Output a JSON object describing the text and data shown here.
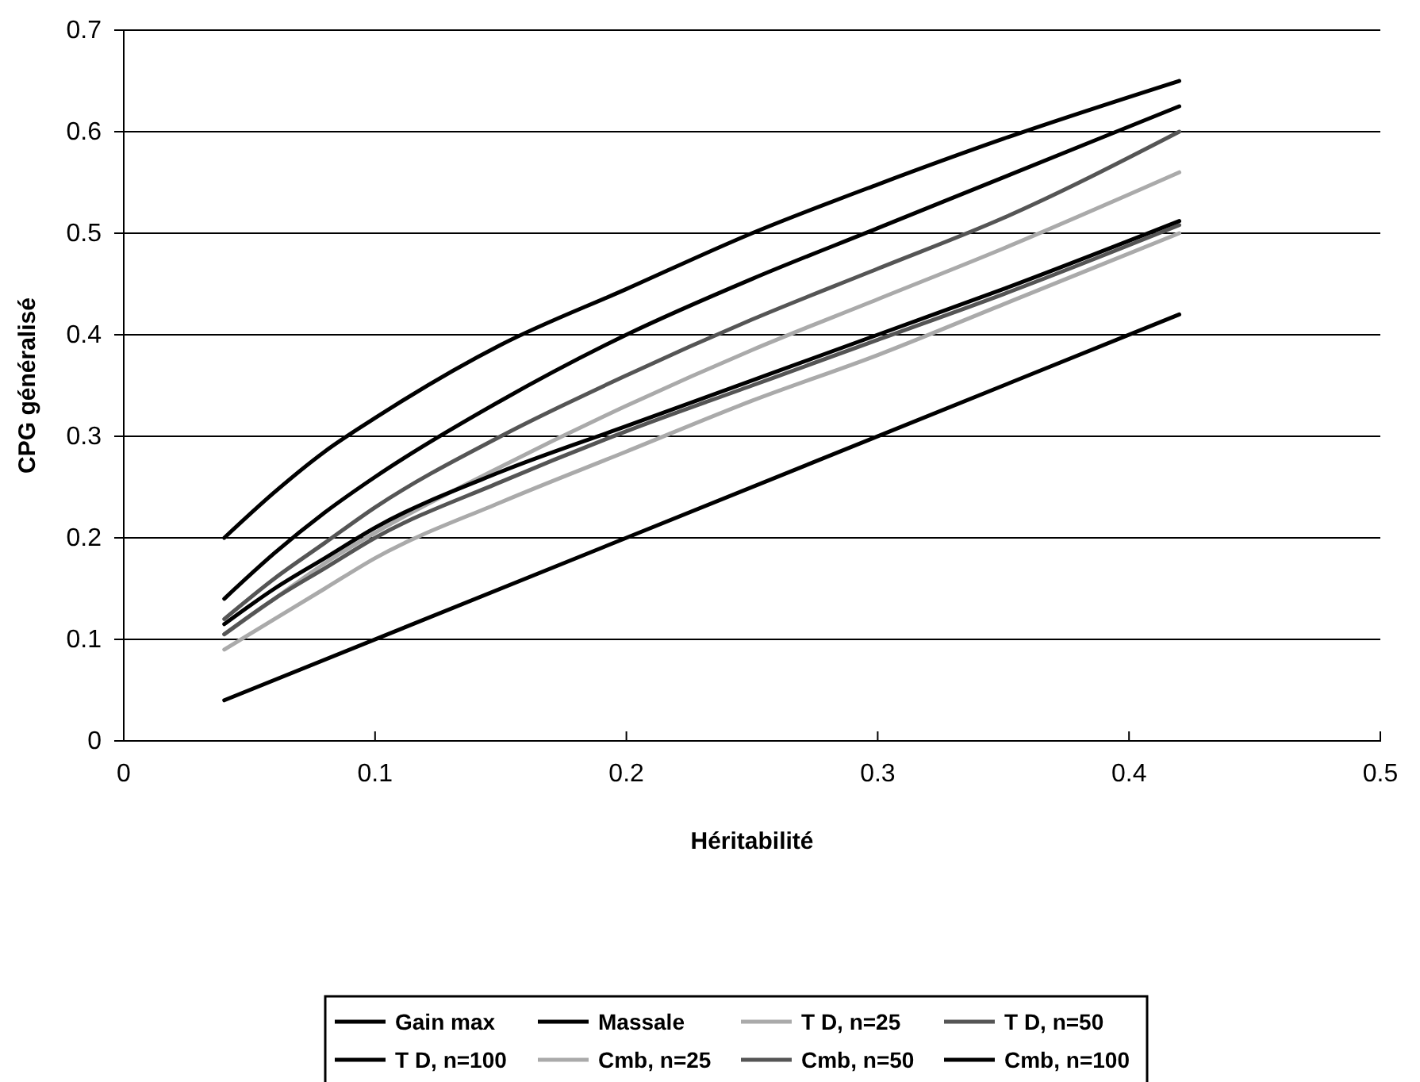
{
  "chart_data": {
    "type": "line",
    "xlabel": "Héritabilité",
    "ylabel": "CPG généralisé",
    "x": [
      0.04,
      0.06,
      0.08,
      0.1,
      0.15,
      0.2,
      0.25,
      0.3,
      0.35,
      0.42
    ],
    "xlim": [
      0,
      0.5
    ],
    "xticks": [
      0,
      0.1,
      0.2,
      0.3,
      0.4,
      0.5
    ],
    "ylim": [
      0,
      0.7
    ],
    "yticks": [
      0,
      0.1,
      0.2,
      0.3,
      0.4,
      0.5,
      0.6,
      0.7
    ],
    "grid": "y",
    "legend": "bottom",
    "line_style": "solid",
    "marker": "none",
    "series": [
      {
        "name": "Gain max",
        "color": "#000000",
        "values": [
          0.2,
          0.245,
          0.285,
          0.318,
          0.39,
          0.445,
          0.5,
          0.548,
          0.593,
          0.65
        ]
      },
      {
        "name": "Massale",
        "color": "#000000",
        "x": [
          0.04,
          0.42
        ],
        "values": [
          0.04,
          0.42
        ]
      },
      {
        "name": "T D, n=25",
        "color": "#aaaaaa",
        "values": [
          0.105,
          0.14,
          0.175,
          0.205,
          0.27,
          0.33,
          0.385,
          0.435,
          0.485,
          0.56
        ]
      },
      {
        "name": "T D, n=50",
        "color": "#555555",
        "values": [
          0.12,
          0.16,
          0.195,
          0.23,
          0.3,
          0.36,
          0.415,
          0.465,
          0.515,
          0.6
        ]
      },
      {
        "name": "T D, n=100",
        "color": "#000000",
        "values": [
          0.14,
          0.185,
          0.225,
          0.26,
          0.335,
          0.4,
          0.455,
          0.505,
          0.555,
          0.625
        ]
      },
      {
        "name": "Cmb, n=25",
        "color": "#aaaaaa",
        "values": [
          0.09,
          0.12,
          0.15,
          0.18,
          0.235,
          0.285,
          0.335,
          0.38,
          0.43,
          0.5
        ]
      },
      {
        "name": "Cmb, n=50",
        "color": "#555555",
        "values": [
          0.105,
          0.14,
          0.17,
          0.2,
          0.255,
          0.305,
          0.35,
          0.395,
          0.44,
          0.508
        ]
      },
      {
        "name": "Cmb, n=100",
        "color": "#000000",
        "values": [
          0.115,
          0.15,
          0.18,
          0.21,
          0.265,
          0.31,
          0.355,
          0.4,
          0.445,
          0.512
        ]
      }
    ]
  }
}
